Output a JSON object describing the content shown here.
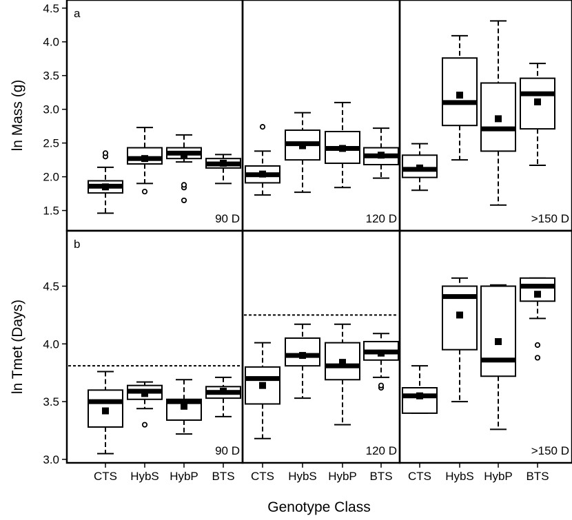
{
  "chart_data": {
    "type": "box",
    "xlabel": "Genotype Class",
    "categories": [
      "CTS",
      "HybS",
      "HybP",
      "BTS"
    ],
    "panel_columns": [
      "90 D",
      "120 D",
      ">150 D"
    ],
    "grid": false,
    "rows": [
      {
        "letter": "a",
        "ylabel": "ln Mass (g)",
        "ylim": [
          1.2,
          4.62
        ],
        "yticks": [
          "1.5",
          "2.0",
          "2.5",
          "3.0",
          "3.5",
          "4.0",
          "4.5"
        ],
        "panels": [
          {
            "label": "90 D",
            "boxes": [
              {
                "category": "CTS",
                "whislo": 1.46,
                "q1": 1.76,
                "med": 1.86,
                "q3": 1.94,
                "whishi": 2.14,
                "mean": 1.85,
                "outliers": [
                  2.3,
                  2.35
                ]
              },
              {
                "category": "HybS",
                "whislo": 1.9,
                "q1": 2.19,
                "med": 2.27,
                "q3": 2.43,
                "whishi": 2.73,
                "mean": 2.27,
                "outliers": [
                  1.78
                ]
              },
              {
                "category": "HybP",
                "whislo": 2.22,
                "q1": 2.27,
                "med": 2.35,
                "q3": 2.43,
                "whishi": 2.62,
                "mean": 2.33,
                "outliers": [
                  1.84,
                  1.88,
                  1.65
                ]
              },
              {
                "category": "BTS",
                "whislo": 1.9,
                "q1": 2.13,
                "med": 2.19,
                "q3": 2.27,
                "whishi": 2.33,
                "mean": 2.2,
                "outliers": []
              }
            ]
          },
          {
            "label": "120 D",
            "boxes": [
              {
                "category": "CTS",
                "whislo": 1.73,
                "q1": 1.91,
                "med": 2.03,
                "q3": 2.16,
                "whishi": 2.38,
                "mean": 2.04,
                "outliers": [
                  2.74
                ]
              },
              {
                "category": "HybS",
                "whislo": 1.77,
                "q1": 2.25,
                "med": 2.49,
                "q3": 2.69,
                "whishi": 2.95,
                "mean": 2.46,
                "outliers": []
              },
              {
                "category": "HybP",
                "whislo": 1.84,
                "q1": 2.2,
                "med": 2.42,
                "q3": 2.67,
                "whishi": 3.1,
                "mean": 2.42,
                "outliers": []
              },
              {
                "category": "BTS",
                "whislo": 1.98,
                "q1": 2.18,
                "med": 2.31,
                "q3": 2.43,
                "whishi": 2.72,
                "mean": 2.32,
                "outliers": []
              }
            ]
          },
          {
            "label": ">150 D",
            "boxes": [
              {
                "category": "CTS",
                "whislo": 1.8,
                "q1": 1.99,
                "med": 2.11,
                "q3": 2.32,
                "whishi": 2.49,
                "mean": 2.13,
                "outliers": []
              },
              {
                "category": "HybS",
                "whislo": 2.25,
                "q1": 2.76,
                "med": 3.1,
                "q3": 3.76,
                "whishi": 4.09,
                "mean": 3.21,
                "outliers": []
              },
              {
                "category": "HybP",
                "whislo": 1.58,
                "q1": 2.38,
                "med": 2.71,
                "q3": 3.39,
                "whishi": 4.31,
                "mean": 2.86,
                "outliers": []
              },
              {
                "category": "BTS",
                "whislo": 2.17,
                "q1": 2.71,
                "med": 3.23,
                "q3": 3.46,
                "whishi": 3.68,
                "mean": 3.11,
                "outliers": []
              }
            ]
          }
        ]
      },
      {
        "letter": "b",
        "ylabel": "ln Tmet (Days)",
        "ylim": [
          2.97,
          4.98
        ],
        "yticks": [
          "3.0",
          "3.5",
          "4.0",
          "4.5"
        ],
        "panels": [
          {
            "label": "90 D",
            "ref_line": 3.81,
            "boxes": [
              {
                "category": "CTS",
                "whislo": 3.05,
                "q1": 3.28,
                "med": 3.5,
                "q3": 3.6,
                "whishi": 3.76,
                "mean": 3.42,
                "outliers": []
              },
              {
                "category": "HybS",
                "whislo": 3.44,
                "q1": 3.52,
                "med": 3.59,
                "q3": 3.64,
                "whishi": 3.67,
                "mean": 3.57,
                "outliers": [
                  3.3
                ]
              },
              {
                "category": "HybP",
                "whislo": 3.22,
                "q1": 3.34,
                "med": 3.5,
                "q3": 3.52,
                "whishi": 3.69,
                "mean": 3.46,
                "outliers": []
              },
              {
                "category": "BTS",
                "whislo": 3.37,
                "q1": 3.53,
                "med": 3.58,
                "q3": 3.63,
                "whishi": 3.71,
                "mean": 3.59,
                "outliers": []
              }
            ]
          },
          {
            "label": "120 D",
            "ref_line": 4.25,
            "boxes": [
              {
                "category": "CTS",
                "whislo": 3.18,
                "q1": 3.48,
                "med": 3.7,
                "q3": 3.8,
                "whishi": 4.01,
                "mean": 3.64,
                "outliers": []
              },
              {
                "category": "HybS",
                "whislo": 3.53,
                "q1": 3.81,
                "med": 3.9,
                "q3": 4.05,
                "whishi": 4.17,
                "mean": 3.9,
                "outliers": []
              },
              {
                "category": "HybP",
                "whislo": 3.3,
                "q1": 3.69,
                "med": 3.81,
                "q3": 4.01,
                "whishi": 4.17,
                "mean": 3.84,
                "outliers": []
              },
              {
                "category": "BTS",
                "whislo": 3.71,
                "q1": 3.86,
                "med": 3.93,
                "q3": 4.02,
                "whishi": 4.09,
                "mean": 3.92,
                "outliers": [
                  3.62,
                  3.64
                ]
              }
            ]
          },
          {
            "label": ">150 D",
            "boxes": [
              {
                "category": "CTS",
                "whislo": 3.4,
                "q1": 3.4,
                "med": 3.55,
                "q3": 3.62,
                "whishi": 3.81,
                "mean": 3.55,
                "outliers": []
              },
              {
                "category": "HybS",
                "whislo": 3.5,
                "q1": 3.95,
                "med": 4.41,
                "q3": 4.5,
                "whishi": 4.57,
                "mean": 4.25,
                "outliers": []
              },
              {
                "category": "HybP",
                "whislo": 3.26,
                "q1": 3.72,
                "med": 3.86,
                "q3": 4.5,
                "whishi": 4.51,
                "mean": 4.02,
                "outliers": []
              },
              {
                "category": "BTS",
                "whislo": 4.22,
                "q1": 4.37,
                "med": 4.5,
                "q3": 4.57,
                "whishi": 4.57,
                "mean": 4.43,
                "outliers": [
                  3.99,
                  3.88
                ]
              }
            ]
          }
        ]
      }
    ]
  }
}
